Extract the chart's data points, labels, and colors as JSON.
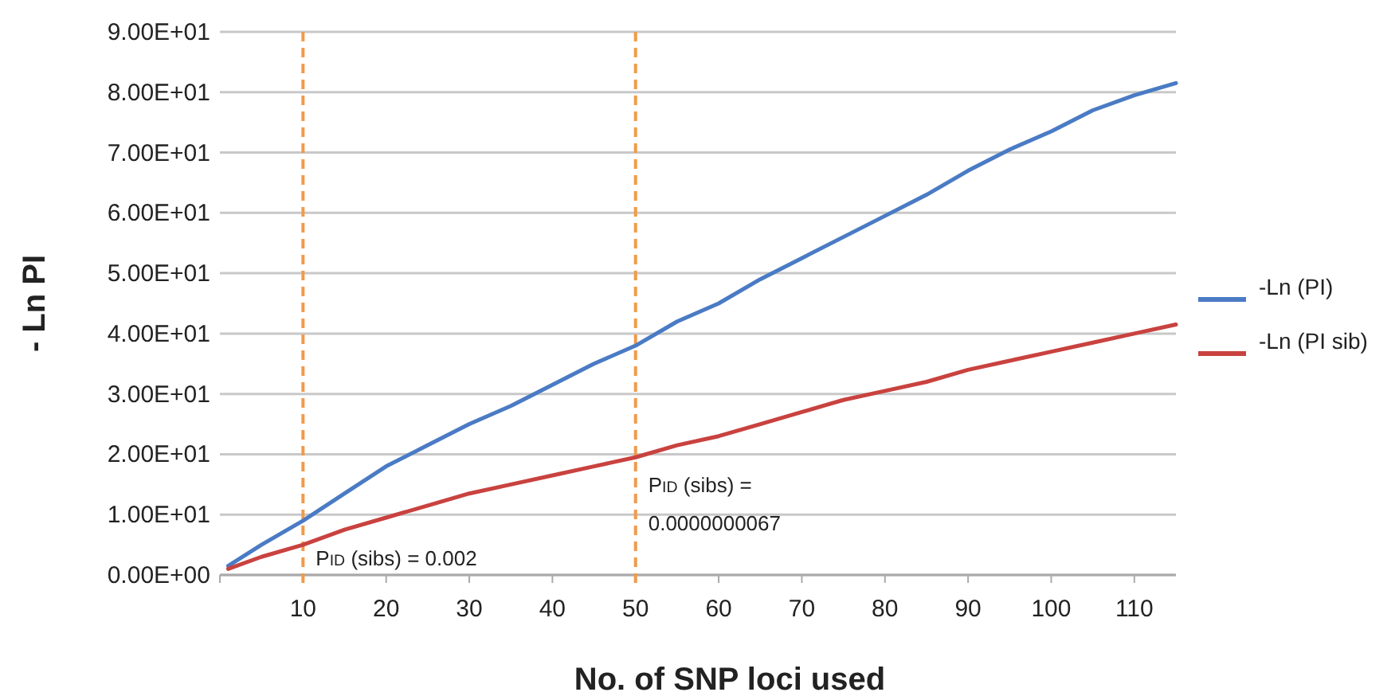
{
  "chart_data": {
    "type": "line",
    "xlabel": "No. of SNP loci used",
    "ylabel": "- Ln PI",
    "x": [
      1,
      5,
      10,
      15,
      20,
      25,
      30,
      35,
      40,
      45,
      50,
      55,
      60,
      65,
      70,
      75,
      80,
      85,
      90,
      95,
      100,
      105,
      110,
      115
    ],
    "series": [
      {
        "name": "-Ln (PI)",
        "color": "#4a7bc4",
        "values": [
          1.5,
          5,
          9,
          13.5,
          18,
          21.5,
          25,
          28,
          31.5,
          35,
          38,
          42,
          45,
          49,
          52.5,
          56,
          59.5,
          63,
          67,
          70.5,
          73.5,
          77,
          79.5,
          81.5
        ]
      },
      {
        "name": "-Ln (PI sib)",
        "color": "#c9423f",
        "values": [
          1,
          3,
          5,
          7.5,
          9.5,
          11.5,
          13.5,
          15,
          16.5,
          18,
          19.5,
          21.5,
          23,
          25,
          27,
          29,
          30.5,
          32,
          34,
          35.5,
          37,
          38.5,
          40,
          41.5
        ]
      }
    ],
    "xlim": [
      0,
      115
    ],
    "xticks": [
      {
        "value": 0,
        "label": null
      },
      10,
      20,
      30,
      40,
      50,
      60,
      70,
      80,
      90,
      100,
      110
    ],
    "ylim": [
      0,
      90
    ],
    "yticks": [
      {
        "value": 0,
        "label": "0.00E+00"
      },
      {
        "value": 10,
        "label": "1.00E+01"
      },
      {
        "value": 20,
        "label": "2.00E+01"
      },
      {
        "value": 30,
        "label": "3.00E+01"
      },
      {
        "value": 40,
        "label": "4.00E+01"
      },
      {
        "value": 50,
        "label": "5.00E+01"
      },
      {
        "value": 60,
        "label": "6.00E+01"
      },
      {
        "value": 70,
        "label": "7.00E+01"
      },
      {
        "value": 80,
        "label": "8.00E+01"
      },
      {
        "value": 90,
        "label": "9.00E+01"
      }
    ],
    "grid": "y",
    "legend": "right",
    "marker": "none",
    "line_style": "solid",
    "ref_lines": [
      {
        "axis": "x",
        "value": 10,
        "color": "#f29a4a",
        "line_style": "dashed"
      },
      {
        "axis": "x",
        "value": 50,
        "color": "#f29a4a",
        "line_style": "dashed"
      }
    ],
    "annotations": [
      "P$_{ID}$ (sibs) = 0.002",
      "P$_{ID}$ (sibs) = 0.0000000067"
    ]
  }
}
